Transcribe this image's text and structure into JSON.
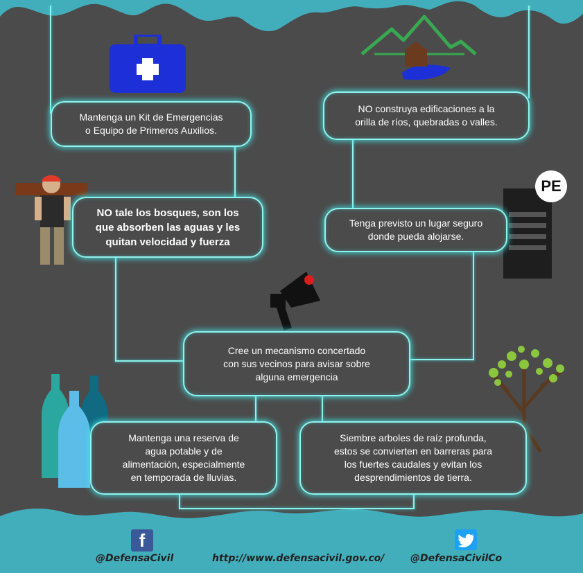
{
  "colors": {
    "background": "#4b4b4b",
    "glow": "#8ff3ee",
    "wave": "#43aebb",
    "text": "#ffffff",
    "footer_text": "#1f1f1f",
    "facebook": "#3b5998",
    "twitter": "#1da1f2"
  },
  "boxes": {
    "kit": [
      "Mantenga un Kit de Emergencias",
      "o Equipo de Primeros Auxilios."
    ],
    "rios": [
      "NO construya edificaciones a la",
      "orilla de ríos, quebradas o valles."
    ],
    "bosques": [
      "NO tale los bosques, son los",
      "que absorben las aguas y les",
      "quitan velocidad y fuerza"
    ],
    "lugar": [
      "Tenga previsto un lugar seguro",
      "donde pueda alojarse."
    ],
    "mecanismo": [
      "Cree un mecanismo concertado",
      "con sus vecinos para avisar sobre",
      "alguna emergencia"
    ],
    "reserva": [
      "Mantenga una reserva de",
      "agua potable y de",
      "alimentación, especialmente",
      "en temporada de lluvias."
    ],
    "arboles": [
      "Siembre arboles de raíz profunda,",
      "estos se convierten en barreras para",
      "los fuertes caudales y evitan los",
      "desprendimientos de tierra."
    ]
  },
  "badge": "PE",
  "icons": {
    "first_aid": "first-aid-kit-icon",
    "mountain_house": "mountain-house-icon",
    "lumberjack": "lumberjack-icon",
    "building": "building-icon",
    "megaphone": "megaphone-icon",
    "bottles": "water-bottles-icon",
    "tree": "tree-icon",
    "facebook": "facebook-icon",
    "twitter": "twitter-icon"
  },
  "footer": {
    "facebook_handle": "@DefensaCivil",
    "website": "http://www.defensacivil.gov.co/",
    "twitter_handle": "@DefensaCivilCo",
    "facebook_glyph": "f"
  }
}
